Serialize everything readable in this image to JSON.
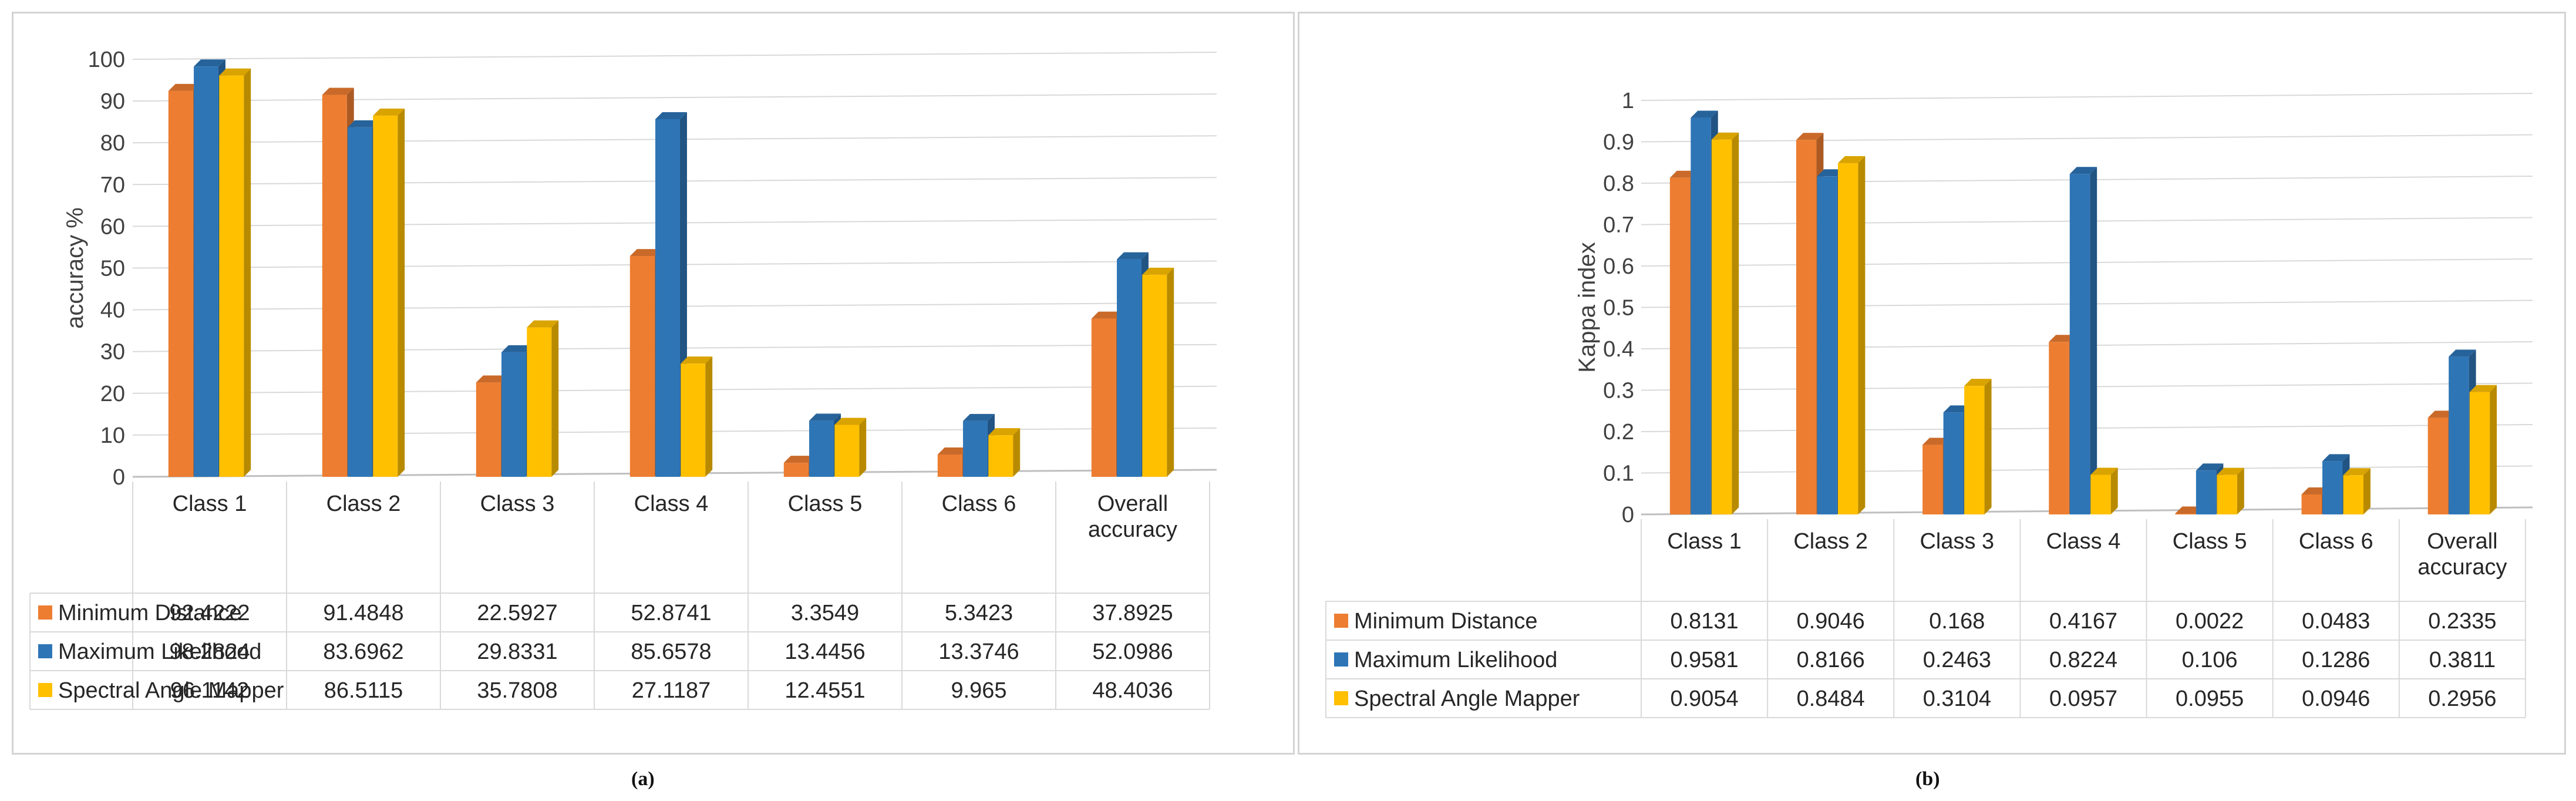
{
  "colors": {
    "minimum_distance": "#ED7D31",
    "maximum_likelihood": "#2E75B6",
    "spectral_angle_mapper": "#FFC000",
    "grid": "#d9d9d9"
  },
  "captions": {
    "a": "(a)",
    "b": "(b)"
  },
  "chart_data": [
    {
      "type": "bar",
      "id": "a",
      "ylabel": "accuracy %",
      "ylim": [
        0,
        100
      ],
      "yticks": [
        "0",
        "10",
        "20",
        "30",
        "40",
        "50",
        "60",
        "70",
        "80",
        "90",
        "100"
      ],
      "categories": [
        "Class 1",
        "Class 2",
        "Class 3",
        "Class 4",
        "Class 5",
        "Class 6",
        "Overall accuracy"
      ],
      "series": [
        {
          "name": "Minimum Distance",
          "color": "#ED7D31",
          "values": [
            92.4222,
            91.4848,
            22.5927,
            52.8741,
            3.3549,
            5.3423,
            37.8925
          ],
          "labels": [
            "92.4222",
            "91.4848",
            "22.5927",
            "52.8741",
            "3.3549",
            "5.3423",
            "37.8925"
          ]
        },
        {
          "name": "Maximum Likelihood",
          "color": "#2E75B6",
          "values": [
            98.2824,
            83.6962,
            29.8331,
            85.6578,
            13.4456,
            13.3746,
            52.0986
          ],
          "labels": [
            "98.2824",
            "83.6962",
            "29.8331",
            "85.6578",
            "13.4456",
            "13.3746",
            "52.0986"
          ]
        },
        {
          "name": "Spectral Angle Mapper",
          "color": "#FFC000",
          "values": [
            96.1142,
            86.5115,
            35.7808,
            27.1187,
            12.4551,
            9.965,
            48.4036
          ],
          "labels": [
            "96.1142",
            "86.5115",
            "35.7808",
            "27.1187",
            "12.4551",
            "9.965",
            "48.4036"
          ]
        }
      ]
    },
    {
      "type": "bar",
      "id": "b",
      "ylabel": "Kappa index",
      "ylim": [
        0,
        1
      ],
      "yticks": [
        "0",
        "0.1",
        "0.2",
        "0.3",
        "0.4",
        "0.5",
        "0.6",
        "0.7",
        "0.8",
        "0.9",
        "1"
      ],
      "categories": [
        "Class 1",
        "Class 2",
        "Class 3",
        "Class 4",
        "Class 5",
        "Class 6",
        "Overall accuracy"
      ],
      "series": [
        {
          "name": "Minimum Distance",
          "color": "#ED7D31",
          "values": [
            0.8131,
            0.9046,
            0.168,
            0.4167,
            0.0022,
            0.0483,
            0.2335
          ],
          "labels": [
            "0.8131",
            "0.9046",
            "0.168",
            "0.4167",
            "0.0022",
            "0.0483",
            "0.2335"
          ]
        },
        {
          "name": "Maximum Likelihood",
          "color": "#2E75B6",
          "values": [
            0.9581,
            0.8166,
            0.2463,
            0.8224,
            0.106,
            0.1286,
            0.3811
          ],
          "labels": [
            "0.9581",
            "0.8166",
            "0.2463",
            "0.8224",
            "0.106",
            "0.1286",
            "0.3811"
          ]
        },
        {
          "name": "Spectral Angle Mapper",
          "color": "#FFC000",
          "values": [
            0.9054,
            0.8484,
            0.3104,
            0.0957,
            0.0955,
            0.0946,
            0.2956
          ],
          "labels": [
            "0.9054",
            "0.8484",
            "0.3104",
            "0.0957",
            "0.0955",
            "0.0946",
            "0.2956"
          ]
        }
      ]
    }
  ]
}
